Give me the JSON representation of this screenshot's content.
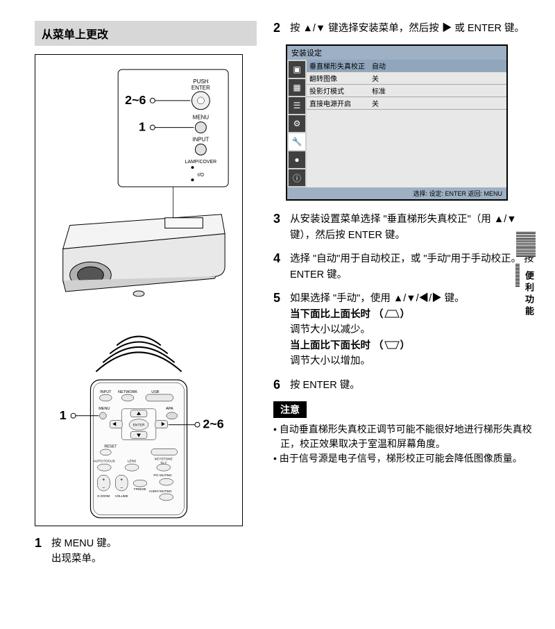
{
  "section_title": "从菜单上更改",
  "illustration": {
    "panel": {
      "btn_push_enter": "PUSH\nENTER",
      "btn_menu": "MENU",
      "btn_input": "INPUT",
      "lbl_lamp_cover": "LAMP/COVER",
      "lbl_power": "I/O",
      "callout_26": "2~6",
      "callout_1": "1"
    },
    "remote": {
      "label_input": "INPUT",
      "label_network": "NETWORK",
      "label_usb": "USB",
      "label_menu": "MENU",
      "label_apa": "APA",
      "label_enter": "ENTER",
      "label_reset": "RESET",
      "label_autofocus": "AUTO FOCUS",
      "label_lens": "LENS",
      "label_keystone_tilt": "KEYSTONE\nTILT",
      "label_zoom": "D ZOOM",
      "label_volume": "VOLUME",
      "label_freeze": "FREEZE",
      "label_pic_muting": "PIC MUTING",
      "label_audio_muting": "AUDIO MUTING",
      "callout_1": "1",
      "callout_26": "2~6"
    }
  },
  "left_steps": {
    "s1": {
      "num": "1",
      "l1": "按 MENU 键。",
      "l2": "出现菜单。"
    }
  },
  "right_steps": {
    "s2": {
      "num": "2",
      "text": "按 ▲/▼ 键选择安装菜单，然后按 ▶ 或 ENTER 键。"
    },
    "s3": {
      "num": "3",
      "text": "从安装设置菜单选择 \"垂直梯形失真校正\"（用 ▲/▼ 键），然后按 ENTER 键。"
    },
    "s4": {
      "num": "4",
      "text": "选择 \"自动\"用于自动校正，或 \"手动\"用于手动校正。 按 ENTER 键。"
    },
    "s5": {
      "num": "5",
      "line1": "如果选择 \"手动\"，使用 ▲/▼/◀/▶ 键。",
      "h1": "当下面比上面长时 （",
      "h1b": "）",
      "b1": "调节大小以减少。",
      "h2": "当上面比下面长时 （",
      "h2b": "）",
      "b2": "调节大小以增加。"
    },
    "s6": {
      "num": "6",
      "text": "按 ENTER 键。"
    }
  },
  "menu_screenshot": {
    "title": "安装设定",
    "rows": [
      {
        "label": "垂直梯形失真校正",
        "value": "自动",
        "selected": true
      },
      {
        "label": "翻转图像",
        "value": "关",
        "selected": false
      },
      {
        "label": "投影灯模式",
        "value": "标准",
        "selected": false
      },
      {
        "label": "直接电源开启",
        "value": "关",
        "selected": false
      }
    ],
    "footer": "选择:  设定: ENTER  返回: MENU",
    "icon_glyphs": [
      "▣",
      "▦",
      "☰",
      "⚙",
      "🔧",
      "●",
      "ⓘ"
    ]
  },
  "notes": {
    "badge": "注意",
    "items": [
      "自动垂直梯形失真校正调节可能不能很好地进行梯形失真校正，校正效果取决于室温和屏幕角度。",
      "由于信号源是电子信号，梯形校正可能会降低图像质量。"
    ]
  },
  "side_tab": "便利功能"
}
